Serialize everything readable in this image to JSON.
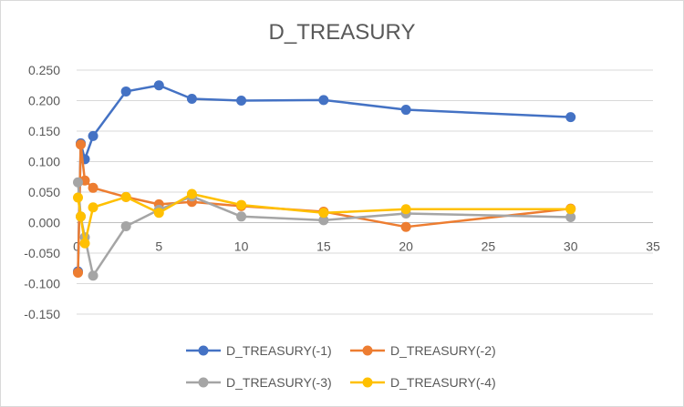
{
  "chart_data": {
    "type": "scatter",
    "title": "D_TREASURY",
    "xlim": [
      0,
      35
    ],
    "ylim": [
      -0.15,
      0.25
    ],
    "x_ticks": [
      0,
      5,
      10,
      15,
      20,
      25,
      30,
      35
    ],
    "y_ticks": [
      -0.15,
      -0.1,
      -0.05,
      0.0,
      0.05,
      0.1,
      0.15,
      0.2,
      0.25
    ],
    "x_tick_labels": [
      "0",
      "5",
      "10",
      "15",
      "20",
      "25",
      "30",
      "35"
    ],
    "y_tick_labels": [
      "-0.150",
      "-0.100",
      "-0.050",
      "0.000",
      "0.050",
      "0.100",
      "0.150",
      "0.200",
      "0.250"
    ],
    "grid": {
      "horizontal": true,
      "vertical": false
    },
    "legend_position": "bottom",
    "series": [
      {
        "name": "D_TREASURY(-1)",
        "color": "#4472c4",
        "points": [
          [
            0.083,
            -0.08
          ],
          [
            0.25,
            0.13
          ],
          [
            0.5,
            0.104
          ],
          [
            1,
            0.142
          ],
          [
            3,
            0.215
          ],
          [
            5,
            0.225
          ],
          [
            7,
            0.203
          ],
          [
            10,
            0.2
          ],
          [
            15,
            0.201
          ],
          [
            20,
            0.185
          ],
          [
            30,
            0.173
          ]
        ]
      },
      {
        "name": "D_TREASURY(-2)",
        "color": "#ed7d31",
        "points": [
          [
            0.083,
            -0.082
          ],
          [
            0.25,
            0.128
          ],
          [
            0.5,
            0.069
          ],
          [
            1,
            0.057
          ],
          [
            3,
            0.042
          ],
          [
            5,
            0.03
          ],
          [
            7,
            0.034
          ],
          [
            10,
            0.027
          ],
          [
            15,
            0.018
          ],
          [
            20,
            -0.007
          ],
          [
            30,
            0.023
          ]
        ]
      },
      {
        "name": "D_TREASURY(-3)",
        "color": "#a5a5a5",
        "points": [
          [
            0.083,
            0.066
          ],
          [
            0.25,
            0.01
          ],
          [
            0.5,
            -0.024
          ],
          [
            1,
            -0.087
          ],
          [
            3,
            -0.006
          ],
          [
            5,
            0.021
          ],
          [
            7,
            0.043
          ],
          [
            10,
            0.01
          ],
          [
            15,
            0.004
          ],
          [
            20,
            0.015
          ],
          [
            30,
            0.009
          ]
        ]
      },
      {
        "name": "D_TREASURY(-4)",
        "color": "#ffc000",
        "points": [
          [
            0.083,
            0.041
          ],
          [
            0.25,
            0.01
          ],
          [
            0.5,
            -0.034
          ],
          [
            1,
            0.025
          ],
          [
            3,
            0.042
          ],
          [
            5,
            0.016
          ],
          [
            7,
            0.047
          ],
          [
            10,
            0.029
          ],
          [
            15,
            0.016
          ],
          [
            20,
            0.022
          ],
          [
            30,
            0.022
          ]
        ]
      }
    ]
  }
}
